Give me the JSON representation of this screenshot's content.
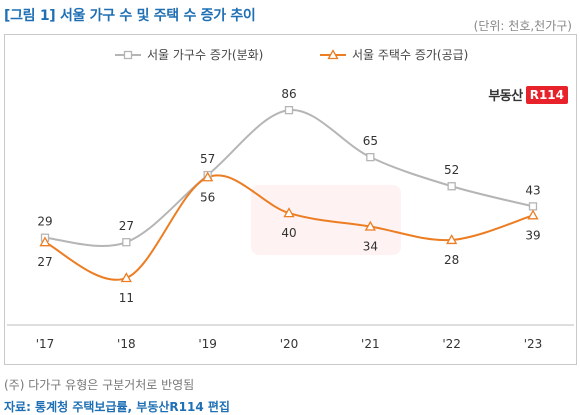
{
  "header": {
    "title": "[그림 1] 서울 가구 수 및 주택 수 증가 추이",
    "unit": "(단위: 천호,천가구)"
  },
  "logo": {
    "text": "부동산",
    "badge": "R114"
  },
  "footer": {
    "note": "(주) 다가구 유형은 구분거처로 반영됨",
    "source": "자료: 통계청 주택보급률, 부동산R114 편집"
  },
  "chart_data": {
    "type": "line",
    "categories": [
      "'17",
      "'18",
      "'19",
      "'20",
      "'21",
      "'22",
      "'23"
    ],
    "series": [
      {
        "name": "서울 가구수 증가(분화)",
        "values": [
          29,
          27,
          57,
          86,
          65,
          52,
          43
        ],
        "color": "#b5b5b5",
        "marker": "square"
      },
      {
        "name": "서울 주택수 증가(공급)",
        "values": [
          27,
          11,
          56,
          40,
          34,
          28,
          39
        ],
        "color": "#ec7d22",
        "marker": "triangle"
      }
    ],
    "ylim": [
      -10,
      95
    ],
    "smooth": true,
    "legend": "top-center",
    "grid": false
  }
}
